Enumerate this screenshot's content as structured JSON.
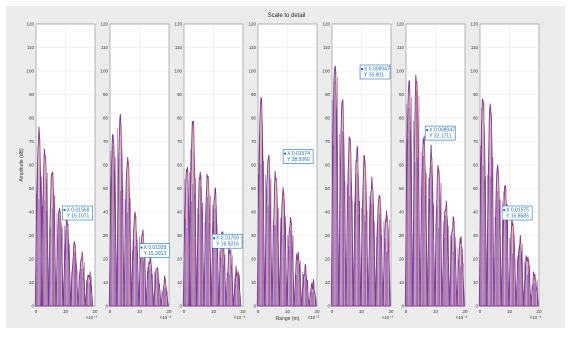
{
  "figure": {
    "title": "Scale to detail"
  },
  "chart_data": {
    "type": "line",
    "panel_count": 7,
    "ylabel": "Amplitude (dB)",
    "xlabel": "Range (m)",
    "x_exponent_label": "×10⁻³",
    "ylim": [
      0,
      120
    ],
    "yticks": [
      0,
      10,
      20,
      30,
      40,
      50,
      60,
      70,
      80,
      90,
      100,
      110,
      120
    ],
    "xlim": [
      0,
      20
    ],
    "xticks": [
      0,
      10,
      20
    ],
    "series_colors": {
      "primary": "#7b3a96",
      "secondary": "#e0784a"
    },
    "panels": [
      {
        "label_panel": false,
        "peaks": [
          {
            "x": 1,
            "y": 74
          },
          {
            "x": 3,
            "y": 66
          },
          {
            "x": 5.5,
            "y": 58
          },
          {
            "x": 8,
            "y": 42
          },
          {
            "x": 10.5,
            "y": 36
          },
          {
            "x": 13,
            "y": 26
          },
          {
            "x": 15.5,
            "y": 22
          },
          {
            "x": 18,
            "y": 14
          }
        ],
        "tooltip": {
          "x": "X 0.01568",
          "y": "Y 15.1071",
          "at": {
            "x": 18.5,
            "y": 40
          }
        }
      },
      {
        "label_panel": false,
        "peaks": [
          {
            "x": 1,
            "y": 72
          },
          {
            "x": 3.5,
            "y": 80
          },
          {
            "x": 6,
            "y": 64
          },
          {
            "x": 8.5,
            "y": 40
          },
          {
            "x": 11,
            "y": 32
          },
          {
            "x": 13.5,
            "y": 20
          },
          {
            "x": 16,
            "y": 16
          },
          {
            "x": 18.5,
            "y": 10
          }
        ],
        "tooltip": {
          "x": "X 0.01928",
          "y": "Y 15.3913",
          "at": {
            "x": 19.5,
            "y": 24
          }
        }
      },
      {
        "label_panel": false,
        "peaks": [
          {
            "x": 1,
            "y": 60
          },
          {
            "x": 3,
            "y": 80
          },
          {
            "x": 5.5,
            "y": 58
          },
          {
            "x": 8,
            "y": 56
          },
          {
            "x": 10.5,
            "y": 50
          },
          {
            "x": 13,
            "y": 30
          },
          {
            "x": 15.5,
            "y": 24
          },
          {
            "x": 18,
            "y": 16
          }
        ],
        "tooltip": {
          "x": "X 0.01759",
          "y": "Y 16.5016",
          "at": {
            "x": 19,
            "y": 28
          }
        }
      },
      {
        "label_panel": true,
        "peaks": [
          {
            "x": 1,
            "y": 90
          },
          {
            "x": 3.5,
            "y": 64
          },
          {
            "x": 6,
            "y": 56
          },
          {
            "x": 8.5,
            "y": 50
          },
          {
            "x": 11,
            "y": 36
          },
          {
            "x": 13.5,
            "y": 22
          },
          {
            "x": 16,
            "y": 16
          },
          {
            "x": 18.5,
            "y": 10
          }
        ],
        "tooltip": {
          "x": "X 0.01574",
          "y": "Y 38.5060",
          "at": {
            "x": 18,
            "y": 64
          }
        }
      },
      {
        "label_panel": false,
        "peaks": [
          {
            "x": 1,
            "y": 104
          },
          {
            "x": 3.5,
            "y": 88
          },
          {
            "x": 6,
            "y": 72
          },
          {
            "x": 8.5,
            "y": 66
          },
          {
            "x": 11,
            "y": 64
          },
          {
            "x": 13.5,
            "y": 52
          },
          {
            "x": 16,
            "y": 48
          },
          {
            "x": 18.5,
            "y": 40
          }
        ],
        "tooltip": {
          "x": "X 0.008947",
          "y": "Y 35.901",
          "at": {
            "x": 19,
            "y": 100
          }
        }
      },
      {
        "label_panel": false,
        "peaks": [
          {
            "x": 1,
            "y": 96
          },
          {
            "x": 3.5,
            "y": 98
          },
          {
            "x": 6,
            "y": 72
          },
          {
            "x": 8.5,
            "y": 66
          },
          {
            "x": 11,
            "y": 60
          },
          {
            "x": 13.5,
            "y": 44
          },
          {
            "x": 16,
            "y": 36
          },
          {
            "x": 18.5,
            "y": 28
          }
        ],
        "tooltip": {
          "x": "X 0.008947",
          "y": "Y 32.1711",
          "at": {
            "x": 16,
            "y": 74
          }
        }
      },
      {
        "label_panel": false,
        "peaks": [
          {
            "x": 1,
            "y": 90
          },
          {
            "x": 3.5,
            "y": 86
          },
          {
            "x": 6,
            "y": 60
          },
          {
            "x": 8.5,
            "y": 52
          },
          {
            "x": 11,
            "y": 36
          },
          {
            "x": 13.5,
            "y": 28
          },
          {
            "x": 16,
            "y": 22
          },
          {
            "x": 18.5,
            "y": 14
          }
        ],
        "tooltip": {
          "x": "X 0.01575",
          "y": "Y 15.8585",
          "at": {
            "x": 17,
            "y": 40
          }
        }
      }
    ]
  }
}
